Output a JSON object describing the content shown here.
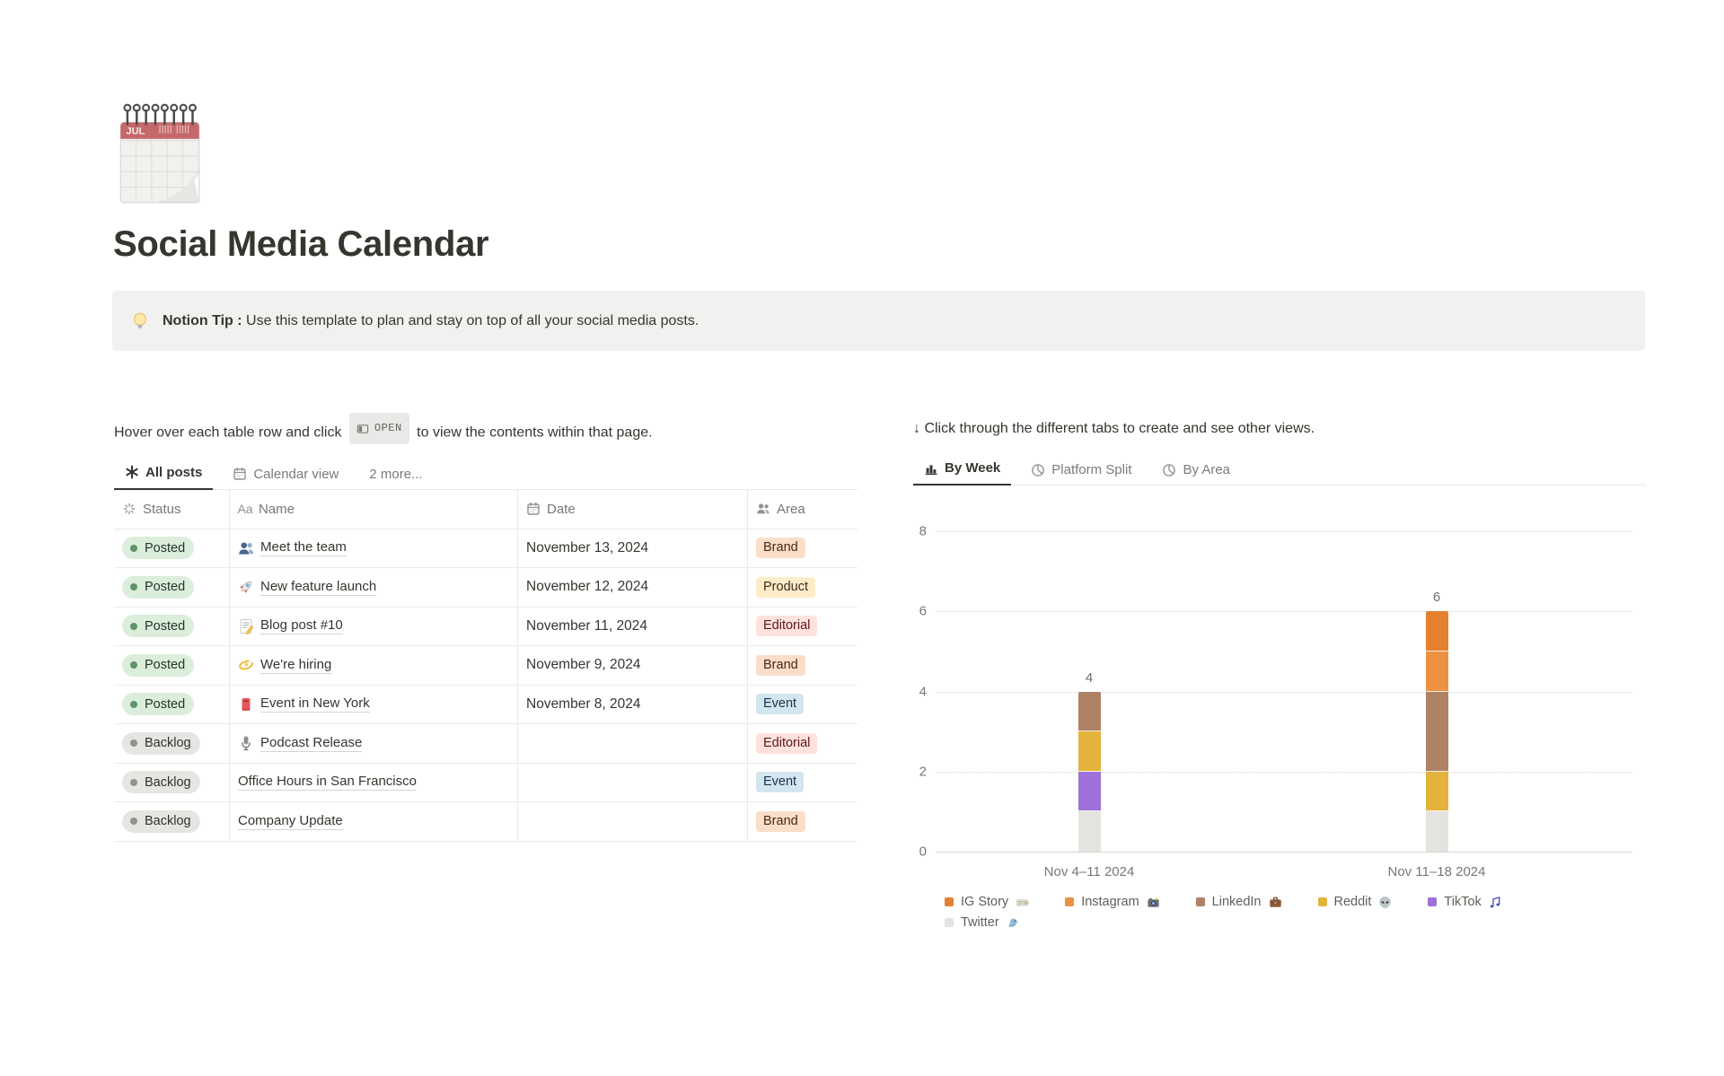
{
  "page": {
    "title": "Social Media Calendar",
    "icon": "spiral-calendar-icon"
  },
  "callout": {
    "icon": "light-bulb-icon",
    "bold_label": "Notion Tip :",
    "text": " Use this template to plan and stay on top of all your social media posts."
  },
  "left": {
    "hint_before": "Hover over each table row and click",
    "open_button_label": "OPEN",
    "hint_after": "to view the contents within that page.",
    "tabs": [
      {
        "label": "All posts",
        "icon": "asterisk-icon",
        "active": true
      },
      {
        "label": "Calendar view",
        "icon": "calendar-icon",
        "active": false
      },
      {
        "label": "2 more...",
        "icon": null,
        "active": false
      }
    ],
    "table": {
      "columns": [
        {
          "label": "Status",
          "icon": "status-spinner-icon"
        },
        {
          "label": "Name",
          "icon": "aa-icon"
        },
        {
          "label": "Date",
          "icon": "calendar-icon"
        },
        {
          "label": "Area",
          "icon": "people-icon"
        }
      ],
      "rows": [
        {
          "status": "Posted",
          "status_color": "green",
          "icon": "busts-in-silhouette-icon",
          "name": "Meet the team",
          "date": "November 13, 2024",
          "area": "Brand",
          "area_color": "orange"
        },
        {
          "status": "Posted",
          "status_color": "green",
          "icon": "rocket-icon",
          "name": "New feature launch",
          "date": "November 12, 2024",
          "area": "Product",
          "area_color": "yellow"
        },
        {
          "status": "Posted",
          "status_color": "green",
          "icon": "memo-icon",
          "name": "Blog post #10",
          "date": "November 11, 2024",
          "area": "Editorial",
          "area_color": "red"
        },
        {
          "status": "Posted",
          "status_color": "green",
          "icon": "dizzy-icon",
          "name": "We're hiring",
          "date": "November 9, 2024",
          "area": "Brand",
          "area_color": "orange"
        },
        {
          "status": "Posted",
          "status_color": "green",
          "icon": "postbox-icon",
          "name": "Event in New York",
          "date": "November 8, 2024",
          "area": "Event",
          "area_color": "blue"
        },
        {
          "status": "Backlog",
          "status_color": "gray",
          "icon": "studio-microphone-icon",
          "name": "Podcast Release",
          "date": "",
          "area": "Editorial",
          "area_color": "red"
        },
        {
          "status": "Backlog",
          "status_color": "gray",
          "icon": null,
          "name": "Office Hours in San Francisco",
          "date": "",
          "area": "Event",
          "area_color": "blue"
        },
        {
          "status": "Backlog",
          "status_color": "gray",
          "icon": null,
          "name": "Company Update",
          "date": "",
          "area": "Brand",
          "area_color": "orange"
        }
      ]
    }
  },
  "right": {
    "hint": "↓ Click through the different tabs to create and see other views.",
    "tabs": [
      {
        "label": "By Week",
        "icon": "bar-chart-icon",
        "active": true
      },
      {
        "label": "Platform Split",
        "icon": "pie-chart-icon",
        "active": false
      },
      {
        "label": "By Area",
        "icon": "pie-chart-icon",
        "active": false
      }
    ]
  },
  "chart_data": {
    "type": "bar",
    "stacked": true,
    "categories": [
      "Nov 4–11 2024",
      "Nov 11–18 2024"
    ],
    "series": [
      {
        "name": "IG Story",
        "icon": "rolled-newspaper-icon",
        "color": "#E5802F",
        "values": [
          0,
          1
        ]
      },
      {
        "name": "Instagram",
        "icon": "camera-with-flash-icon",
        "color": "#EC9140",
        "values": [
          0,
          1
        ]
      },
      {
        "name": "LinkedIn",
        "icon": "briefcase-icon",
        "color": "#AF8165",
        "values": [
          1,
          2
        ]
      },
      {
        "name": "Reddit",
        "icon": "alien-icon",
        "color": "#E3B33C",
        "values": [
          1,
          1
        ]
      },
      {
        "name": "TikTok",
        "icon": "musical-notes-icon",
        "color": "#9D71D9",
        "values": [
          1,
          0
        ]
      },
      {
        "name": "Twitter",
        "icon": "bird-icon",
        "color": "#E5E3E0",
        "values": [
          1,
          1
        ]
      }
    ],
    "totals": [
      4,
      6
    ],
    "title": "",
    "xlabel": "",
    "ylabel": "",
    "ylim": [
      0,
      8
    ],
    "yticks": [
      0,
      2,
      4,
      6,
      8
    ],
    "grid": "dotted-horizontal",
    "legend_position": "bottom"
  },
  "palette": {
    "status": {
      "green": {
        "bg": "#DBEDDB",
        "text": "#1C3829",
        "dot": "#5F9368"
      },
      "gray": {
        "bg": "#E6E5E2",
        "text": "#32312D",
        "dot": "#91918E"
      }
    },
    "area": {
      "orange": {
        "bg": "#FADEC9",
        "text": "#49290E"
      },
      "yellow": {
        "bg": "#FDECC8",
        "text": "#402C1B"
      },
      "red": {
        "bg": "#FFE2DD",
        "text": "#5D1715"
      },
      "blue": {
        "bg": "#D3E5EF",
        "text": "#183347"
      }
    }
  }
}
